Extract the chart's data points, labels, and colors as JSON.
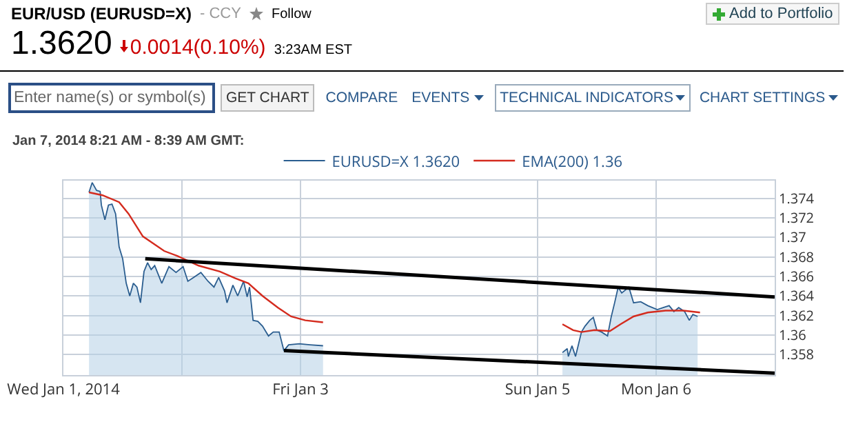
{
  "chart_data": {
    "type": "area",
    "title": "EUR/USD (EURUSD=X)",
    "annotations": [
      "- CCY",
      "Follow",
      "Add to Portfolio",
      "1.3620",
      "0.0014(0.10%)",
      "3:23AM EST",
      "Enter name(s) or symbol(s)",
      "GET CHART",
      "COMPARE",
      "EVENTS",
      "TECHNICAL INDICATORS",
      "CHART SETTINGS",
      "Jan 7, 2014 8:21 AM - 8:39 AM GMT:"
    ],
    "series": [
      {
        "name": "EURUSD=X 1.3620",
        "color": "#2a5d8f",
        "x": [
          "2014-01-01T05:11",
          "2014-01-01T05:50",
          "2014-01-01T06:43",
          "2014-01-01T07:26",
          "2014-01-01T07:41",
          "2014-01-01T08:24",
          "2014-01-01T09:07",
          "2014-01-01T09:50",
          "2014-01-01T10:34",
          "2014-01-01T11:17",
          "2014-01-01T12:00",
          "2014-01-01T12:43",
          "2014-01-01T13:26",
          "2014-01-01T14:10",
          "2014-01-01T14:53",
          "2014-01-01T15:36",
          "2014-01-01T16:19",
          "2014-01-01T17:02",
          "2014-01-01T17:46",
          "2014-01-01T18:29",
          "2014-01-01T19:55",
          "2014-01-01T21:22",
          "2014-01-01T22:48",
          "2014-01-02T00:14",
          "2014-01-02T01:12",
          "2014-01-02T02:24",
          "2014-01-02T03:50",
          "2014-01-02T05:17",
          "2014-01-02T06:29",
          "2014-01-02T07:26",
          "2014-01-02T08:38",
          "2014-01-02T09:07",
          "2014-01-02T10:19",
          "2014-01-02T11:17",
          "2014-01-02T12:29",
          "2014-01-02T13:12",
          "2014-01-02T13:41",
          "2014-01-02T14:24",
          "2014-01-02T15:22",
          "2014-01-02T16:19",
          "2014-01-02T17:31",
          "2014-01-02T18:29",
          "2014-01-02T19:41",
          "2014-01-02T20:38",
          "2014-01-02T21:36",
          "2014-01-02T23:46",
          "2014-01-03T01:55",
          "2014-01-03T04:34",
          "2014-01-03T16:48",
          "2014-01-05T05:02",
          "2014-01-05T06:00",
          "2014-01-05T06:14",
          "2014-01-05T06:58",
          "2014-01-05T07:41",
          "2014-01-05T08:53",
          "2014-01-05T09:36",
          "2014-01-05T10:34",
          "2014-01-05T11:17",
          "2014-01-05T12:00",
          "2014-01-05T12:58",
          "2014-01-05T14:10",
          "2014-01-05T14:53",
          "2014-01-05T15:36",
          "2014-01-05T16:19",
          "2014-01-05T17:02",
          "2014-01-05T18:29",
          "2014-01-05T19:26",
          "2014-01-05T20:53",
          "2014-01-05T22:19",
          "2014-01-06T00:14",
          "2014-01-06T01:26",
          "2014-01-06T02:38",
          "2014-01-06T03:36",
          "2014-01-06T04:34",
          "2014-01-06T05:46",
          "2014-01-06T06:43",
          "2014-01-06T07:26",
          "2014-01-06T08:24"
        ],
        "values": [
          1.3746,
          1.3756,
          1.3748,
          1.3747,
          1.3733,
          1.3718,
          1.3733,
          1.3734,
          1.3724,
          1.369,
          1.3678,
          1.3653,
          1.364,
          1.3653,
          1.3649,
          1.3633,
          1.3665,
          1.3674,
          1.3667,
          1.3671,
          1.3653,
          1.367,
          1.3664,
          1.367,
          1.3655,
          1.3659,
          1.3664,
          1.3655,
          1.3649,
          1.3659,
          1.3645,
          1.3633,
          1.3651,
          1.364,
          1.3655,
          1.3639,
          1.3649,
          1.3615,
          1.3614,
          1.3609,
          1.3599,
          1.3603,
          1.3603,
          1.3584,
          1.359,
          1.3591,
          1.359,
          1.3589,
          null,
          1.3582,
          1.3586,
          1.3578,
          1.3589,
          1.3578,
          1.3603,
          1.3609,
          1.3615,
          1.3618,
          1.3605,
          1.3603,
          1.3599,
          1.3618,
          1.3633,
          1.3649,
          1.3643,
          1.3649,
          1.3633,
          1.3634,
          1.363,
          1.3626,
          1.3628,
          1.363,
          1.3624,
          1.3628,
          1.3624,
          1.3615,
          1.3621,
          1.3619
        ]
      },
      {
        "name": "EMA(200) 1.36",
        "type": "line",
        "color": "#d42b1e",
        "x": [
          "2014-01-01T05:11",
          "2014-01-01T07:55",
          "2014-01-01T11:17",
          "2014-01-01T13:12",
          "2014-01-01T16:05",
          "2014-01-01T20:24",
          "2014-01-01T23:02",
          "2014-01-02T03:22",
          "2014-01-02T07:41",
          "2014-01-02T10:48",
          "2014-01-02T13:26",
          "2014-01-02T16:19",
          "2014-01-02T19:26",
          "2014-01-02T22:05",
          "2014-01-03T00:58",
          "2014-01-03T04:34",
          "2014-01-03T16:48",
          "2014-01-05T05:02",
          "2014-01-05T07:12",
          "2014-01-05T08:53",
          "2014-01-05T11:31",
          "2014-01-05T14:38",
          "2014-01-05T16:48",
          "2014-01-05T19:26",
          "2014-01-05T22:19",
          "2014-01-06T01:55",
          "2014-01-06T05:31",
          "2014-01-06T08:53"
        ],
        "values": [
          1.3746,
          1.3743,
          1.3736,
          1.3724,
          1.3701,
          1.3686,
          1.3681,
          1.3671,
          1.3665,
          1.3658,
          1.3653,
          1.364,
          1.3628,
          1.3619,
          1.3615,
          1.3613,
          null,
          1.3611,
          1.3605,
          1.3603,
          1.3605,
          1.3604,
          1.3611,
          1.3619,
          1.3623,
          1.3625,
          1.3625,
          1.3623
        ]
      },
      {
        "type": "line",
        "color": "#000000",
        "x": [
          "2014-01-01T16:34",
          "2014-01-07"
        ],
        "values": [
          1.3678,
          1.3639
        ]
      },
      {
        "type": "line",
        "color": "#000000",
        "x": [
          "2014-01-02T20:38",
          "2014-01-07"
        ],
        "values": [
          1.3584,
          1.3561
        ]
      }
    ],
    "xlim": [
      "2014-01-01",
      "2014-01-07"
    ],
    "xticks": [
      {
        "value": "2014-01-01",
        "label": "Wed Jan 1, 2014"
      },
      {
        "value": "2014-01-02",
        "label": null
      },
      {
        "value": "2014-01-03",
        "label": "Fri Jan 3"
      },
      {
        "value": "2014-01-05",
        "label": "Sun Jan 5"
      },
      {
        "value": "2014-01-06",
        "label": "Mon Jan 6"
      }
    ],
    "ylim": [
      1.3559,
      1.3758
    ],
    "yticks": [
      1.358,
      1.36,
      1.362,
      1.364,
      1.366,
      1.368,
      1.37,
      1.372,
      1.374
    ],
    "grid": true,
    "legend": "top left",
    "line_style": "solid"
  }
}
